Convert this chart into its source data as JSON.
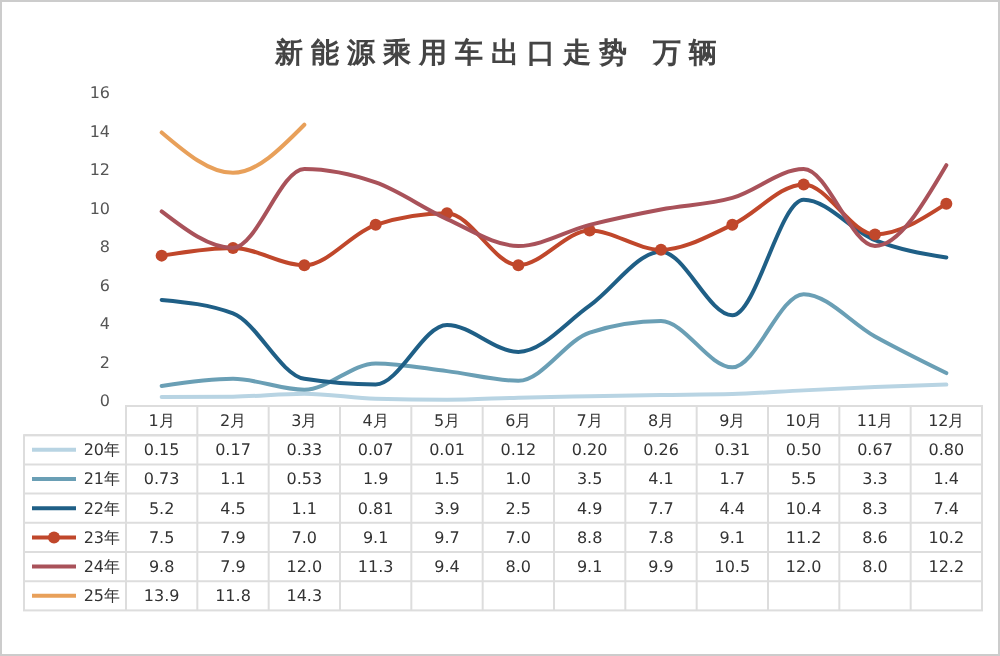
{
  "chart_data": {
    "type": "line",
    "title": "新能源乘用车出口走势  万辆",
    "categories": [
      "1月",
      "2月",
      "3月",
      "4月",
      "5月",
      "6月",
      "7月",
      "8月",
      "9月",
      "10月",
      "11月",
      "12月"
    ],
    "series": [
      {
        "name": "20年",
        "color": "#b8d4e3",
        "values": [
          0.15,
          0.17,
          0.33,
          0.07,
          0.01,
          0.12,
          0.2,
          0.26,
          0.31,
          0.5,
          0.67,
          0.8
        ],
        "value_labels": [
          "0.15",
          "0.17",
          "0.33",
          "0.07",
          "0.01",
          "0.12",
          "0.20",
          "0.26",
          "0.31",
          "0.50",
          "0.67",
          "0.80"
        ]
      },
      {
        "name": "21年",
        "color": "#6a9fb5",
        "values": [
          0.73,
          1.1,
          0.53,
          1.9,
          1.5,
          1.0,
          3.5,
          4.1,
          1.7,
          5.5,
          3.3,
          1.4
        ],
        "value_labels": [
          "0.73",
          "1.1",
          "0.53",
          "1.9",
          "1.5",
          "1.0",
          "3.5",
          "4.1",
          "1.7",
          "5.5",
          "3.3",
          "1.4"
        ]
      },
      {
        "name": "22年",
        "color": "#1f5f86",
        "values": [
          5.2,
          4.5,
          1.1,
          0.81,
          3.9,
          2.5,
          4.9,
          7.7,
          4.4,
          10.4,
          8.3,
          7.4
        ],
        "value_labels": [
          "5.2",
          "4.5",
          "1.1",
          "0.81",
          "3.9",
          "2.5",
          "4.9",
          "7.7",
          "4.4",
          "10.4",
          "8.3",
          "7.4"
        ]
      },
      {
        "name": "23年",
        "color": "#c0472b",
        "marker": "circle",
        "values": [
          7.5,
          7.9,
          7.0,
          9.1,
          9.7,
          7.0,
          8.8,
          7.8,
          9.1,
          11.2,
          8.6,
          10.2
        ],
        "value_labels": [
          "7.5",
          "7.9",
          "7.0",
          "9.1",
          "9.7",
          "7.0",
          "8.8",
          "7.8",
          "9.1",
          "11.2",
          "8.6",
          "10.2"
        ]
      },
      {
        "name": "24年",
        "color": "#a9525a",
        "values": [
          9.8,
          7.9,
          12.0,
          11.3,
          9.4,
          8.0,
          9.1,
          9.9,
          10.5,
          12.0,
          8.0,
          12.2
        ],
        "value_labels": [
          "9.8",
          "7.9",
          "12.0",
          "11.3",
          "9.4",
          "8.0",
          "9.1",
          "9.9",
          "10.5",
          "12.0",
          "8.0",
          "12.2"
        ]
      },
      {
        "name": "25年",
        "color": "#e8a05a",
        "values": [
          13.9,
          11.8,
          14.3,
          null,
          null,
          null,
          null,
          null,
          null,
          null,
          null,
          null
        ],
        "value_labels": [
          "13.9",
          "11.8",
          "14.3",
          null,
          null,
          null,
          null,
          null,
          null,
          null,
          null,
          null
        ]
      }
    ],
    "ylim": [
      0,
      16
    ],
    "yticks": [
      0,
      2,
      4,
      6,
      8,
      10,
      12,
      14,
      16
    ],
    "grid": false,
    "legend": "bottom left"
  }
}
